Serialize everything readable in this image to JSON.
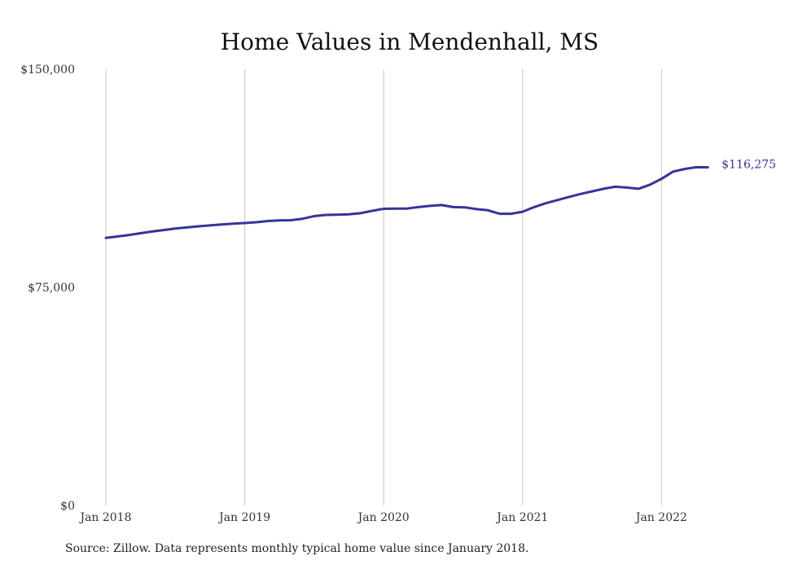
{
  "chart_data": {
    "type": "line",
    "title": "Home Values in Mendenhall, MS",
    "xlabel": "",
    "ylabel": "",
    "ylim": [
      0,
      150000
    ],
    "x_tick_labels": [
      "Jan 2018",
      "Jan 2019",
      "Jan 2020",
      "Jan 2021",
      "Jan 2022"
    ],
    "y_tick_labels": [
      "$150,000",
      "$75,000",
      "$0"
    ],
    "y_tick_values": [
      150000,
      75000,
      0
    ],
    "grid": "vertical",
    "series": [
      {
        "color": "#36349b",
        "x": [
          "2018-01",
          "2018-02",
          "2018-03",
          "2018-04",
          "2018-05",
          "2018-06",
          "2018-07",
          "2018-08",
          "2018-09",
          "2018-10",
          "2018-11",
          "2018-12",
          "2019-01",
          "2019-02",
          "2019-03",
          "2019-04",
          "2019-05",
          "2019-06",
          "2019-07",
          "2019-08",
          "2019-09",
          "2019-10",
          "2019-11",
          "2019-12",
          "2020-01",
          "2020-02",
          "2020-03",
          "2020-04",
          "2020-05",
          "2020-06",
          "2020-07",
          "2020-08",
          "2020-09",
          "2020-10",
          "2020-11",
          "2020-12",
          "2021-01",
          "2021-02",
          "2021-03",
          "2021-04",
          "2021-05",
          "2021-06",
          "2021-07",
          "2021-08",
          "2021-09",
          "2021-10",
          "2021-11",
          "2021-12",
          "2022-01",
          "2022-02",
          "2022-03",
          "2022-04",
          "2022-05"
        ],
        "values": [
          92000,
          92500,
          93000,
          93600,
          94200,
          94700,
          95200,
          95600,
          96000,
          96300,
          96600,
          96900,
          97100,
          97400,
          97800,
          98000,
          98100,
          98600,
          99500,
          99900,
          100000,
          100100,
          100500,
          101300,
          102000,
          102100,
          102100,
          102600,
          103000,
          103300,
          102600,
          102500,
          101900,
          101500,
          100300,
          100300,
          101000,
          102600,
          103900,
          105000,
          106100,
          107100,
          108000,
          108900,
          109600,
          109300,
          108900,
          110300,
          112300,
          114800,
          115700,
          116300,
          116275
        ],
        "end_label": "$116,275"
      }
    ]
  },
  "source": "Source: Zillow. Data represents monthly typical home value since January 2018.",
  "colors": {
    "line": "#36349b",
    "gridline": "#c8c8c8",
    "end_label": "#36349b"
  }
}
